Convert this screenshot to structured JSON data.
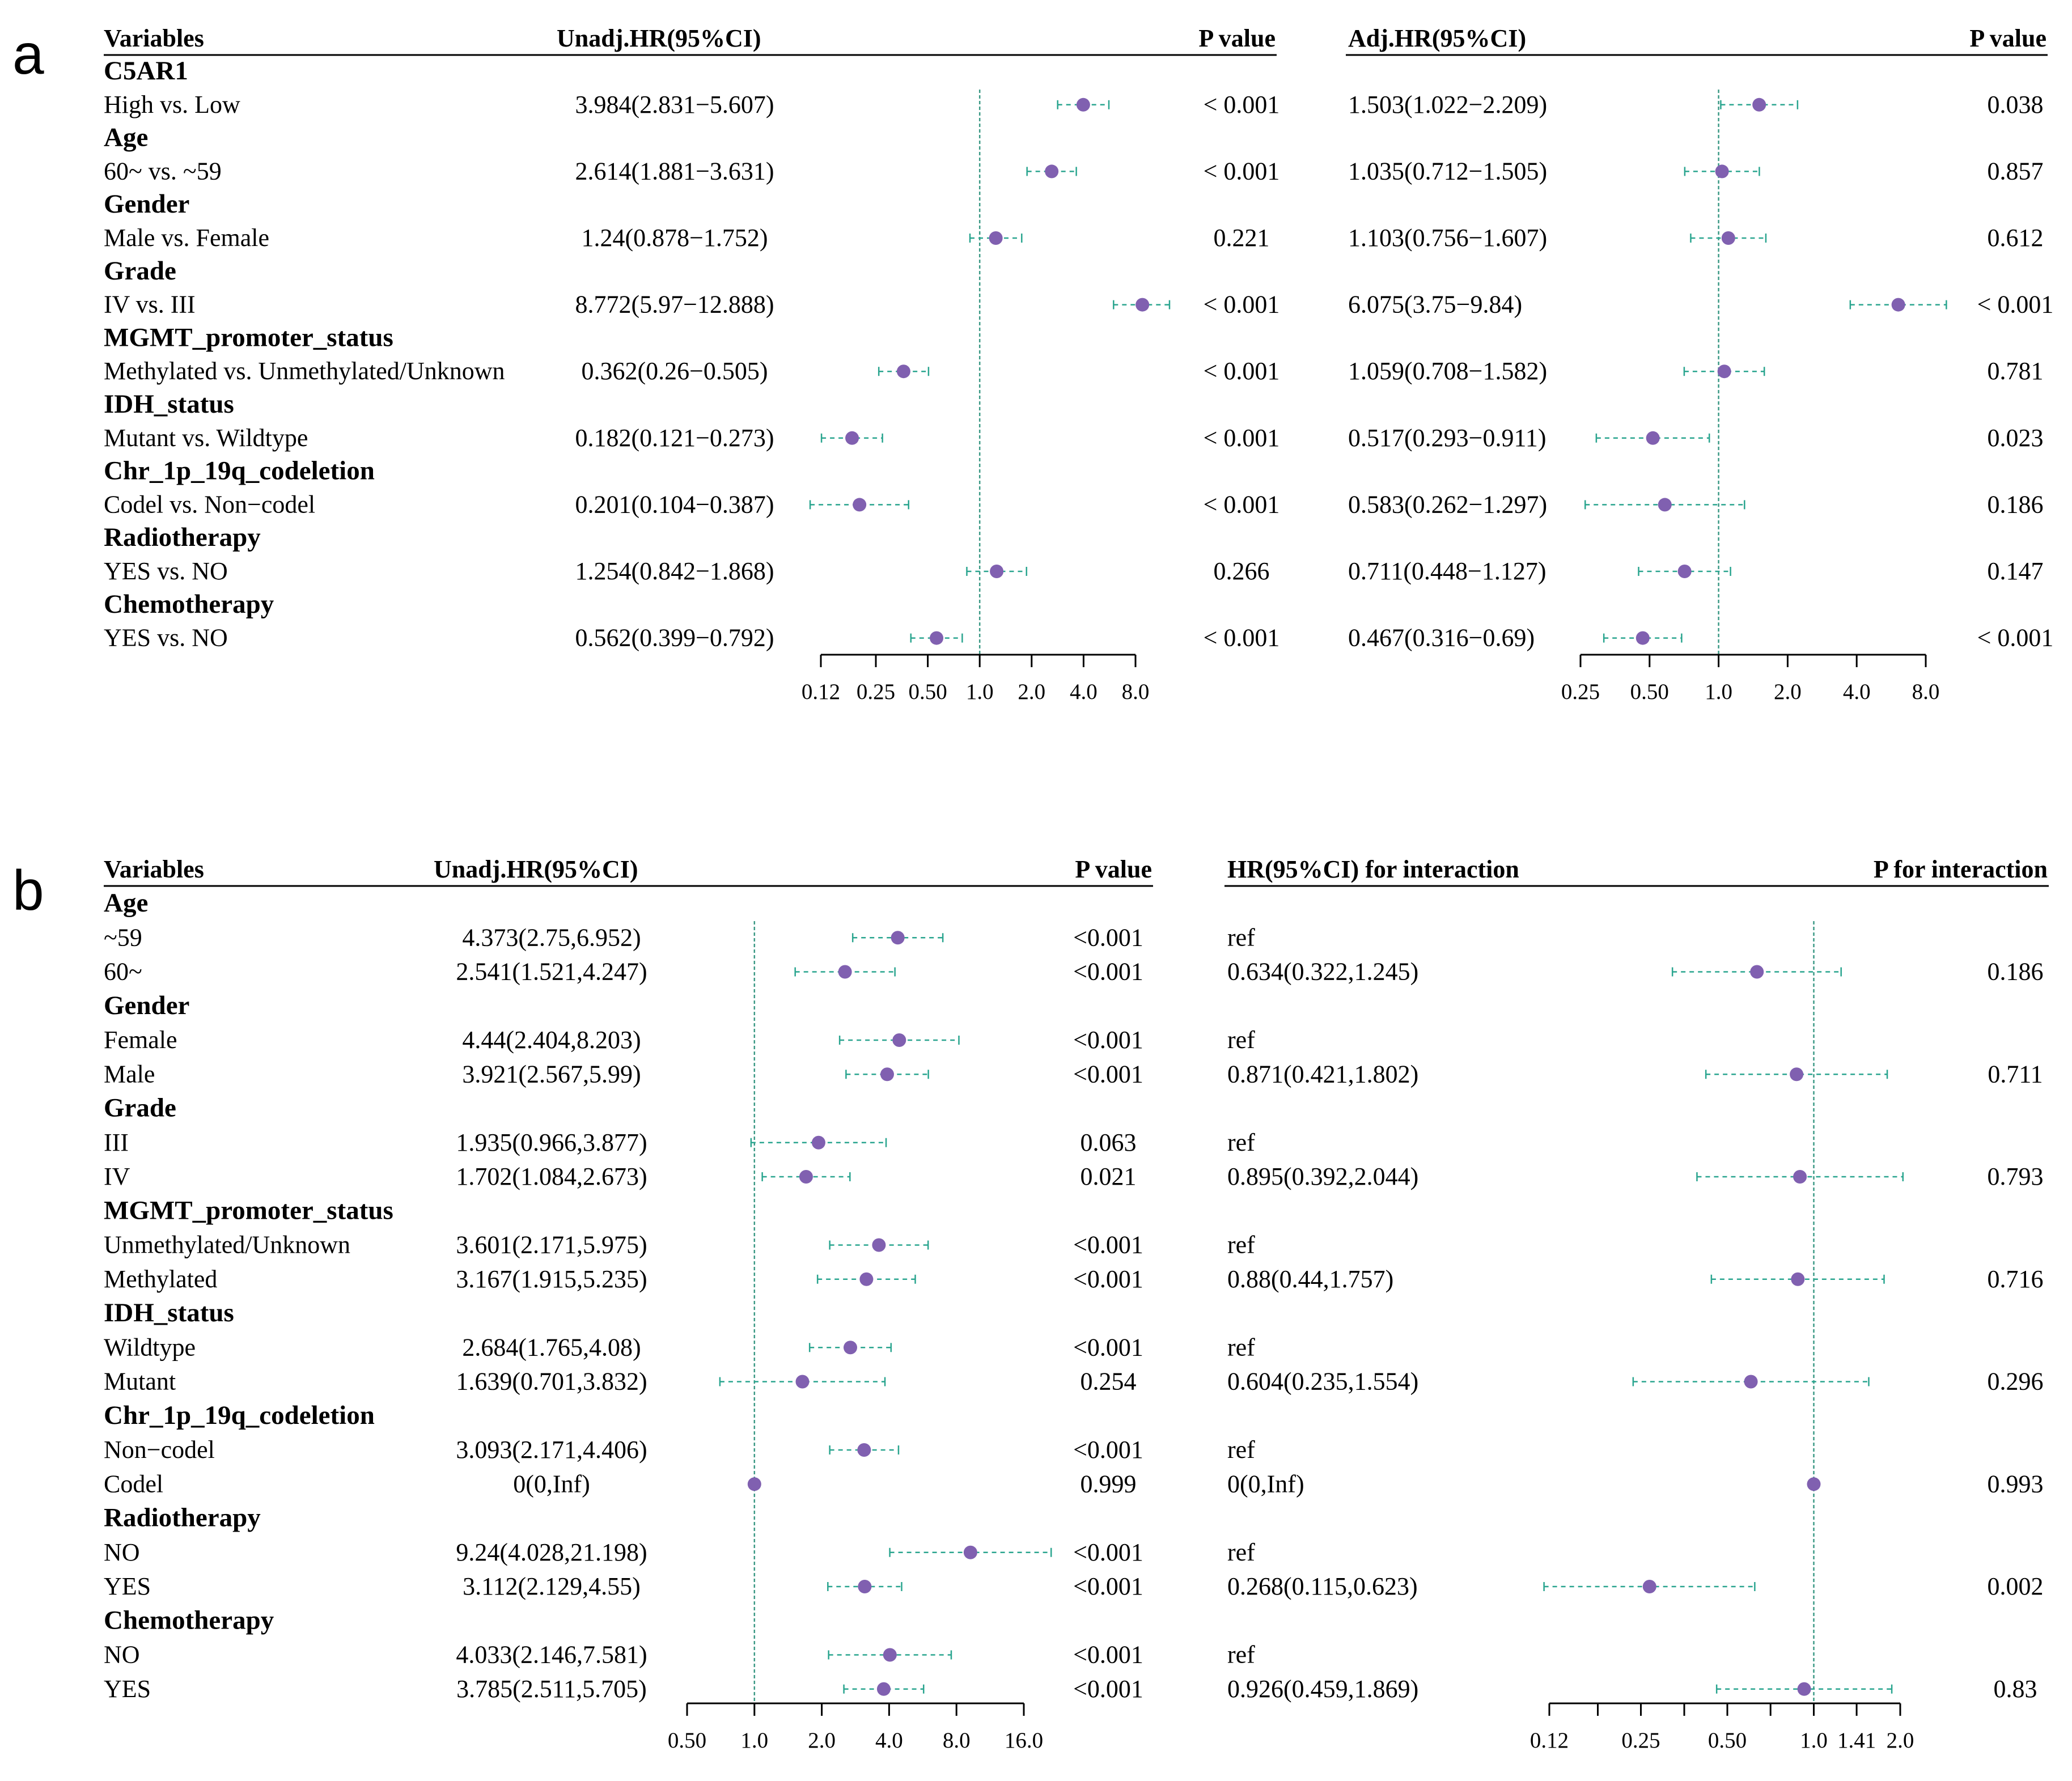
{
  "colors": {
    "point": "#8060b0",
    "ci": "#2aa58f",
    "ref_line": "#3d9a86",
    "axis": "#000000"
  },
  "panel_a": {
    "label": "a",
    "headers": {
      "variables": "Variables",
      "unadj_hr": "Unadj.HR(95%CI)",
      "p_value": "P value",
      "adj_hr": "Adj.HR(95%CI)",
      "adj_p_value": "P value"
    },
    "groups": [
      {
        "title": "C5AR1",
        "rows": [
          {
            "label": "High vs. Low",
            "hr": "3.984(2.831−5.607)",
            "p": "< 0.001",
            "adj_hr": "1.503(1.022−2.209)",
            "adj_p": "0.038"
          }
        ]
      },
      {
        "title": "Age",
        "rows": [
          {
            "label": "60~ vs. ~59",
            "hr": "2.614(1.881−3.631)",
            "p": "< 0.001",
            "adj_hr": "1.035(0.712−1.505)",
            "adj_p": "0.857"
          }
        ]
      },
      {
        "title": "Gender",
        "rows": [
          {
            "label": "Male vs. Female",
            "hr": "1.24(0.878−1.752)",
            "p": "0.221",
            "adj_hr": "1.103(0.756−1.607)",
            "adj_p": "0.612"
          }
        ]
      },
      {
        "title": "Grade",
        "rows": [
          {
            "label": "IV vs. III",
            "hr": "8.772(5.97−12.888)",
            "p": "< 0.001",
            "adj_hr": "6.075(3.75−9.84)",
            "adj_p": "< 0.001"
          }
        ]
      },
      {
        "title": "MGMT_promoter_status",
        "rows": [
          {
            "label": "Methylated vs. Unmethylated/Unknown",
            "hr": "0.362(0.26−0.505)",
            "p": "< 0.001",
            "adj_hr": "1.059(0.708−1.582)",
            "adj_p": "0.781"
          }
        ]
      },
      {
        "title": "IDH_status",
        "rows": [
          {
            "label": "Mutant vs. Wildtype",
            "hr": "0.182(0.121−0.273)",
            "p": "< 0.001",
            "adj_hr": "0.517(0.293−0.911)",
            "adj_p": "0.023"
          }
        ]
      },
      {
        "title": "Chr_1p_19q_codeletion",
        "rows": [
          {
            "label": "Codel vs. Non−codel",
            "hr": "0.201(0.104−0.387)",
            "p": "< 0.001",
            "adj_hr": "0.583(0.262−1.297)",
            "adj_p": "0.186"
          }
        ]
      },
      {
        "title": "Radiotherapy",
        "rows": [
          {
            "label": "YES vs. NO",
            "hr": "1.254(0.842−1.868)",
            "p": "0.266",
            "adj_hr": "0.711(0.448−1.127)",
            "adj_p": "0.147"
          }
        ]
      },
      {
        "title": "Chemotherapy",
        "rows": [
          {
            "label": "YES vs. NO",
            "hr": "0.562(0.399−0.792)",
            "p": "< 0.001",
            "adj_hr": "0.467(0.316−0.69)",
            "adj_p": "< 0.001"
          }
        ]
      }
    ]
  },
  "panel_b": {
    "label": "b",
    "headers": {
      "variables": "Variables",
      "unadj_hr": "Unadj.HR(95%CI)",
      "p_value": "P value",
      "int_hr": "HR(95%CI) for interaction",
      "p_int": "P for interaction"
    },
    "groups": [
      {
        "title": "Age",
        "rows": [
          {
            "label": "~59",
            "hr": "4.373(2.75,6.952)",
            "p": "<0.001",
            "int_hr": "ref",
            "p_int": ""
          },
          {
            "label": "60~",
            "hr": "2.541(1.521,4.247)",
            "p": "<0.001",
            "int_hr": "0.634(0.322,1.245)",
            "p_int": "0.186"
          }
        ]
      },
      {
        "title": "Gender",
        "rows": [
          {
            "label": "Female",
            "hr": "4.44(2.404,8.203)",
            "p": "<0.001",
            "int_hr": "ref",
            "p_int": ""
          },
          {
            "label": "Male",
            "hr": "3.921(2.567,5.99)",
            "p": "<0.001",
            "int_hr": "0.871(0.421,1.802)",
            "p_int": "0.711"
          }
        ]
      },
      {
        "title": "Grade",
        "rows": [
          {
            "label": "III",
            "hr": "1.935(0.966,3.877)",
            "p": "0.063",
            "int_hr": "ref",
            "p_int": ""
          },
          {
            "label": "IV",
            "hr": "1.702(1.084,2.673)",
            "p": "0.021",
            "int_hr": "0.895(0.392,2.044)",
            "p_int": "0.793"
          }
        ]
      },
      {
        "title": "MGMT_promoter_status",
        "rows": [
          {
            "label": "Unmethylated/Unknown",
            "hr": "3.601(2.171,5.975)",
            "p": "<0.001",
            "int_hr": "ref",
            "p_int": ""
          },
          {
            "label": "Methylated",
            "hr": "3.167(1.915,5.235)",
            "p": "<0.001",
            "int_hr": "0.88(0.44,1.757)",
            "p_int": "0.716"
          }
        ]
      },
      {
        "title": "IDH_status",
        "rows": [
          {
            "label": "Wildtype",
            "hr": "2.684(1.765,4.08)",
            "p": "<0.001",
            "int_hr": "ref",
            "p_int": ""
          },
          {
            "label": "Mutant",
            "hr": "1.639(0.701,3.832)",
            "p": "0.254",
            "int_hr": "0.604(0.235,1.554)",
            "p_int": "0.296"
          }
        ]
      },
      {
        "title": "Chr_1p_19q_codeletion",
        "rows": [
          {
            "label": "Non−codel",
            "hr": "3.093(2.171,4.406)",
            "p": "<0.001",
            "int_hr": "ref",
            "p_int": ""
          },
          {
            "label": "Codel",
            "hr": "0(0,Inf)",
            "p": "0.999",
            "int_hr": "0(0,Inf)",
            "p_int": "0.993"
          }
        ]
      },
      {
        "title": "Radiotherapy",
        "rows": [
          {
            "label": "NO",
            "hr": "9.24(4.028,21.198)",
            "p": "<0.001",
            "int_hr": "ref",
            "p_int": ""
          },
          {
            "label": "YES",
            "hr": "3.112(2.129,4.55)",
            "p": "<0.001",
            "int_hr": "0.268(0.115,0.623)",
            "p_int": "0.002"
          }
        ]
      },
      {
        "title": "Chemotherapy",
        "rows": [
          {
            "label": "NO",
            "hr": "4.033(2.146,7.581)",
            "p": "<0.001",
            "int_hr": "ref",
            "p_int": ""
          },
          {
            "label": "YES",
            "hr": "3.785(2.511,5.705)",
            "p": "<0.001",
            "int_hr": "0.926(0.459,1.869)",
            "p_int": "0.83"
          }
        ]
      }
    ]
  },
  "chart_data": [
    {
      "type": "forest",
      "title": "a: Unadjusted HR",
      "scale": "log",
      "reference": 1.0,
      "xlim": [
        0.12,
        8.0
      ],
      "ticks": [
        0.12,
        0.25,
        0.5,
        1.0,
        2.0,
        4.0,
        8.0
      ],
      "tick_labels": [
        "0.12",
        "0.25",
        "0.50",
        "1.0",
        "2.0",
        "4.0",
        "8.0"
      ],
      "points": [
        {
          "hr": 3.984,
          "lo": 2.831,
          "hi": 5.607
        },
        {
          "hr": 2.614,
          "lo": 1.881,
          "hi": 3.631
        },
        {
          "hr": 1.24,
          "lo": 0.878,
          "hi": 1.752
        },
        {
          "hr": 8.772,
          "lo": 5.97,
          "hi": 12.888
        },
        {
          "hr": 0.362,
          "lo": 0.26,
          "hi": 0.505
        },
        {
          "hr": 0.182,
          "lo": 0.121,
          "hi": 0.273
        },
        {
          "hr": 0.201,
          "lo": 0.104,
          "hi": 0.387
        },
        {
          "hr": 1.254,
          "lo": 0.842,
          "hi": 1.868
        },
        {
          "hr": 0.562,
          "lo": 0.399,
          "hi": 0.792
        }
      ]
    },
    {
      "type": "forest",
      "title": "a: Adjusted HR",
      "scale": "log",
      "reference": 1.0,
      "xlim": [
        0.25,
        8.0
      ],
      "ticks": [
        0.25,
        0.5,
        1.0,
        2.0,
        4.0,
        8.0
      ],
      "tick_labels": [
        "0.25",
        "0.50",
        "1.0",
        "2.0",
        "4.0",
        "8.0"
      ],
      "points": [
        {
          "hr": 1.503,
          "lo": 1.022,
          "hi": 2.209
        },
        {
          "hr": 1.035,
          "lo": 0.712,
          "hi": 1.505
        },
        {
          "hr": 1.103,
          "lo": 0.756,
          "hi": 1.607
        },
        {
          "hr": 6.075,
          "lo": 3.75,
          "hi": 9.84
        },
        {
          "hr": 1.059,
          "lo": 0.708,
          "hi": 1.582
        },
        {
          "hr": 0.517,
          "lo": 0.293,
          "hi": 0.911
        },
        {
          "hr": 0.583,
          "lo": 0.262,
          "hi": 1.297
        },
        {
          "hr": 0.711,
          "lo": 0.448,
          "hi": 1.127
        },
        {
          "hr": 0.467,
          "lo": 0.316,
          "hi": 0.69
        }
      ]
    },
    {
      "type": "forest",
      "title": "b: Unadjusted HR by subgroup",
      "scale": "log",
      "reference": 1.0,
      "xlim": [
        0.5,
        16.0
      ],
      "ticks": [
        0.5,
        1.0,
        2.0,
        4.0,
        8.0,
        16.0
      ],
      "tick_labels": [
        "0.50",
        "1.0",
        "2.0",
        "4.0",
        "8.0",
        "16.0"
      ],
      "points": [
        {
          "hr": 4.373,
          "lo": 2.75,
          "hi": 6.952
        },
        {
          "hr": 2.541,
          "lo": 1.521,
          "hi": 4.247
        },
        {
          "hr": 4.44,
          "lo": 2.404,
          "hi": 8.203
        },
        {
          "hr": 3.921,
          "lo": 2.567,
          "hi": 5.99
        },
        {
          "hr": 1.935,
          "lo": 0.966,
          "hi": 3.877
        },
        {
          "hr": 1.702,
          "lo": 1.084,
          "hi": 2.673
        },
        {
          "hr": 3.601,
          "lo": 2.171,
          "hi": 5.975
        },
        {
          "hr": 3.167,
          "lo": 1.915,
          "hi": 5.235
        },
        {
          "hr": 2.684,
          "lo": 1.765,
          "hi": 4.08
        },
        {
          "hr": 1.639,
          "lo": 0.701,
          "hi": 3.832
        },
        {
          "hr": 3.093,
          "lo": 2.171,
          "hi": 4.406
        },
        {
          "hr": 1.0,
          "lo": null,
          "hi": null
        },
        {
          "hr": 9.24,
          "lo": 4.028,
          "hi": 21.198
        },
        {
          "hr": 3.112,
          "lo": 2.129,
          "hi": 4.55
        },
        {
          "hr": 4.033,
          "lo": 2.146,
          "hi": 7.581
        },
        {
          "hr": 3.785,
          "lo": 2.511,
          "hi": 5.705
        }
      ]
    },
    {
      "type": "forest",
      "title": "b: HR for interaction",
      "scale": "log",
      "reference": 1.0,
      "xlim": [
        0.12,
        2.0
      ],
      "ticks": [
        0.12,
        0.25,
        0.5,
        1.0,
        1.41,
        2.0
      ],
      "tick_labels": [
        "0.12",
        "0.25",
        "0.50",
        "1.0",
        "1.41",
        "2.0"
      ],
      "minor_ticks": [
        0.177,
        0.354,
        0.707
      ],
      "points": [
        null,
        {
          "hr": 0.634,
          "lo": 0.322,
          "hi": 1.245
        },
        null,
        {
          "hr": 0.871,
          "lo": 0.421,
          "hi": 1.802
        },
        null,
        {
          "hr": 0.895,
          "lo": 0.392,
          "hi": 2.044
        },
        null,
        {
          "hr": 0.88,
          "lo": 0.44,
          "hi": 1.757
        },
        null,
        {
          "hr": 0.604,
          "lo": 0.235,
          "hi": 1.554
        },
        null,
        {
          "hr": 1.0,
          "lo": null,
          "hi": null
        },
        null,
        {
          "hr": 0.268,
          "lo": 0.115,
          "hi": 0.623
        },
        null,
        {
          "hr": 0.926,
          "lo": 0.459,
          "hi": 1.869
        }
      ]
    }
  ]
}
